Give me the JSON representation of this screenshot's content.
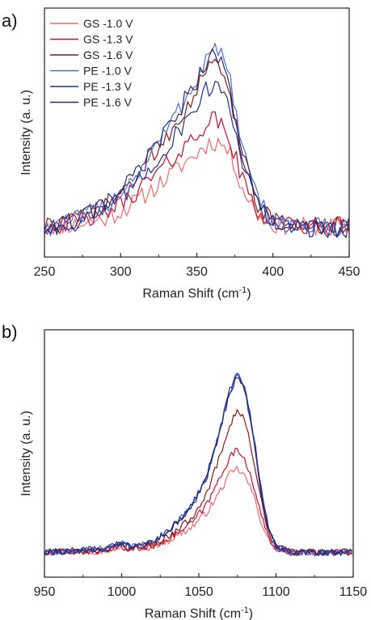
{
  "chart_data": [
    {
      "type": "line",
      "panel_label": "a)",
      "xlabel": "Raman Shift (cm",
      "xlabel_sup": "-1",
      "xlabel_close": ")",
      "ylabel": "Intensity (a. u.)",
      "xlim": [
        250,
        450
      ],
      "xticks": [
        250,
        300,
        350,
        400,
        450
      ],
      "ylim": [
        0,
        1.3
      ],
      "legend_position": "top-left",
      "series": [
        {
          "name": "GS -1.0 V",
          "color": "#f06a6a",
          "x": [
            250,
            270,
            290,
            300,
            310,
            320,
            330,
            340,
            350,
            355,
            360,
            365,
            370,
            375,
            380,
            390,
            400,
            420,
            450
          ],
          "y": [
            0.16,
            0.17,
            0.2,
            0.24,
            0.29,
            0.35,
            0.41,
            0.48,
            0.54,
            0.58,
            0.6,
            0.6,
            0.56,
            0.48,
            0.36,
            0.22,
            0.17,
            0.16,
            0.16
          ]
        },
        {
          "name": "GS -1.3 V",
          "color": "#c8102e",
          "x": [
            250,
            270,
            290,
            300,
            310,
            320,
            330,
            340,
            350,
            355,
            360,
            365,
            370,
            375,
            380,
            390,
            400,
            420,
            450
          ],
          "y": [
            0.16,
            0.18,
            0.23,
            0.28,
            0.34,
            0.41,
            0.48,
            0.56,
            0.64,
            0.69,
            0.72,
            0.7,
            0.64,
            0.53,
            0.4,
            0.24,
            0.18,
            0.16,
            0.16
          ]
        },
        {
          "name": "GS -1.6 V",
          "color": "#8b1a1a",
          "x": [
            250,
            270,
            290,
            300,
            310,
            320,
            330,
            340,
            350,
            355,
            360,
            365,
            370,
            375,
            380,
            390,
            400,
            420,
            450
          ],
          "y": [
            0.16,
            0.19,
            0.26,
            0.33,
            0.42,
            0.52,
            0.63,
            0.75,
            0.88,
            0.95,
            1.0,
            0.99,
            0.9,
            0.73,
            0.52,
            0.28,
            0.19,
            0.16,
            0.16
          ]
        },
        {
          "name": "PE -1.0 V",
          "color": "#4a6ed8",
          "x": [
            250,
            270,
            290,
            300,
            310,
            320,
            330,
            340,
            350,
            355,
            360,
            365,
            370,
            375,
            380,
            390,
            400,
            420,
            450
          ],
          "y": [
            0.15,
            0.19,
            0.27,
            0.34,
            0.43,
            0.54,
            0.66,
            0.79,
            0.93,
            1.02,
            1.09,
            1.08,
            0.98,
            0.8,
            0.56,
            0.29,
            0.19,
            0.16,
            0.15
          ]
        },
        {
          "name": "PE -1.3 V",
          "color": "#1f2f9c",
          "x": [
            250,
            270,
            290,
            300,
            310,
            320,
            330,
            340,
            350,
            355,
            360,
            365,
            370,
            375,
            380,
            390,
            400,
            420,
            450
          ],
          "y": [
            0.14,
            0.18,
            0.24,
            0.3,
            0.38,
            0.47,
            0.57,
            0.68,
            0.8,
            0.86,
            0.9,
            0.89,
            0.83,
            0.69,
            0.5,
            0.27,
            0.18,
            0.15,
            0.15
          ]
        },
        {
          "name": "PE -1.6 V",
          "color": "#2b2b6b",
          "x": [
            250,
            270,
            290,
            300,
            310,
            320,
            330,
            340,
            350,
            355,
            360,
            365,
            370,
            375,
            380,
            390,
            400,
            420,
            450
          ],
          "y": [
            0.15,
            0.19,
            0.27,
            0.34,
            0.43,
            0.54,
            0.66,
            0.79,
            0.92,
            1.0,
            1.05,
            1.04,
            0.94,
            0.76,
            0.53,
            0.28,
            0.18,
            0.15,
            0.15
          ]
        }
      ]
    },
    {
      "type": "line",
      "panel_label": "b)",
      "xlabel": "Raman Shift (cm",
      "xlabel_sup": "-1",
      "xlabel_close": ")",
      "ylabel": "Intensity (a. u.)",
      "xlim": [
        950,
        1150
      ],
      "xticks": [
        950,
        1000,
        1050,
        1100,
        1150
      ],
      "ylim": [
        0,
        1.3
      ],
      "series": [
        {
          "color": "#f06a6a",
          "x": [
            950,
            990,
            1000,
            1005,
            1015,
            1030,
            1045,
            1055,
            1060,
            1065,
            1070,
            1075,
            1080,
            1085,
            1090,
            1095,
            1100,
            1110,
            1150
          ],
          "y": [
            0.13,
            0.14,
            0.16,
            0.15,
            0.15,
            0.19,
            0.26,
            0.34,
            0.4,
            0.47,
            0.54,
            0.57,
            0.53,
            0.44,
            0.3,
            0.2,
            0.15,
            0.13,
            0.13
          ]
        },
        {
          "color": "#c8102e",
          "x": [
            950,
            990,
            1000,
            1005,
            1015,
            1030,
            1045,
            1055,
            1060,
            1065,
            1070,
            1075,
            1080,
            1085,
            1090,
            1095,
            1100,
            1110,
            1150
          ],
          "y": [
            0.13,
            0.14,
            0.16,
            0.15,
            0.15,
            0.2,
            0.28,
            0.38,
            0.46,
            0.55,
            0.63,
            0.67,
            0.62,
            0.5,
            0.33,
            0.21,
            0.15,
            0.13,
            0.13
          ]
        },
        {
          "color": "#8b1a1a",
          "x": [
            950,
            990,
            1000,
            1005,
            1015,
            1030,
            1045,
            1055,
            1060,
            1065,
            1070,
            1075,
            1080,
            1085,
            1090,
            1095,
            1100,
            1110,
            1150
          ],
          "y": [
            0.13,
            0.14,
            0.17,
            0.15,
            0.16,
            0.21,
            0.31,
            0.44,
            0.55,
            0.67,
            0.8,
            0.88,
            0.82,
            0.64,
            0.41,
            0.24,
            0.16,
            0.13,
            0.13
          ]
        },
        {
          "color": "#4a6ed8",
          "x": [
            950,
            990,
            1000,
            1005,
            1015,
            1030,
            1045,
            1055,
            1060,
            1065,
            1070,
            1075,
            1080,
            1085,
            1090,
            1095,
            1100,
            1110,
            1150
          ],
          "y": [
            0.13,
            0.15,
            0.18,
            0.16,
            0.17,
            0.24,
            0.37,
            0.53,
            0.67,
            0.82,
            0.98,
            1.07,
            0.99,
            0.76,
            0.47,
            0.26,
            0.16,
            0.13,
            0.13
          ]
        },
        {
          "color": "#1f2f9c",
          "x": [
            950,
            990,
            1000,
            1005,
            1015,
            1030,
            1045,
            1055,
            1060,
            1065,
            1070,
            1075,
            1080,
            1085,
            1090,
            1095,
            1100,
            1110,
            1150
          ],
          "y": [
            0.13,
            0.15,
            0.18,
            0.16,
            0.17,
            0.24,
            0.37,
            0.53,
            0.67,
            0.82,
            0.99,
            1.08,
            1.0,
            0.77,
            0.48,
            0.26,
            0.16,
            0.13,
            0.13
          ]
        },
        {
          "color": "#2b2b6b",
          "x": [
            950,
            990,
            1000,
            1005,
            1015,
            1030,
            1045,
            1055,
            1060,
            1065,
            1070,
            1075,
            1080,
            1085,
            1090,
            1095,
            1100,
            1110,
            1150
          ],
          "y": [
            0.13,
            0.15,
            0.18,
            0.16,
            0.17,
            0.24,
            0.36,
            0.52,
            0.66,
            0.81,
            0.97,
            1.06,
            0.98,
            0.75,
            0.46,
            0.25,
            0.16,
            0.13,
            0.13
          ]
        }
      ]
    }
  ]
}
